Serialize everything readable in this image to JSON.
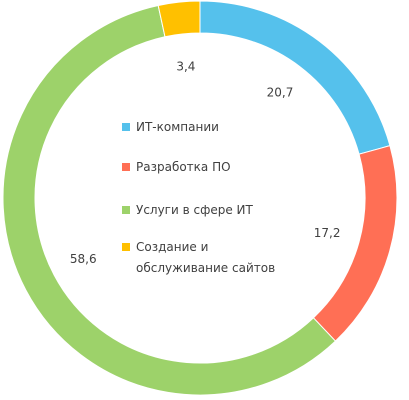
{
  "chart_data": {
    "type": "donut",
    "series": [
      {
        "name": "ИТ-компании",
        "color": "#55C1EC"
      },
      {
        "name": "Разработка ПО",
        "color": "#FF6F55"
      },
      {
        "name": "Услуги в сфере ИТ",
        "color": "#9DD26A"
      },
      {
        "name": "Создание и обслуживание сайтов",
        "color": "#FFC000"
      }
    ],
    "values": [
      20.7,
      17.2,
      58.6,
      3.4
    ],
    "value_labels": [
      "20,7",
      "17,2",
      "58,6",
      "3,4"
    ],
    "legend": "center"
  }
}
